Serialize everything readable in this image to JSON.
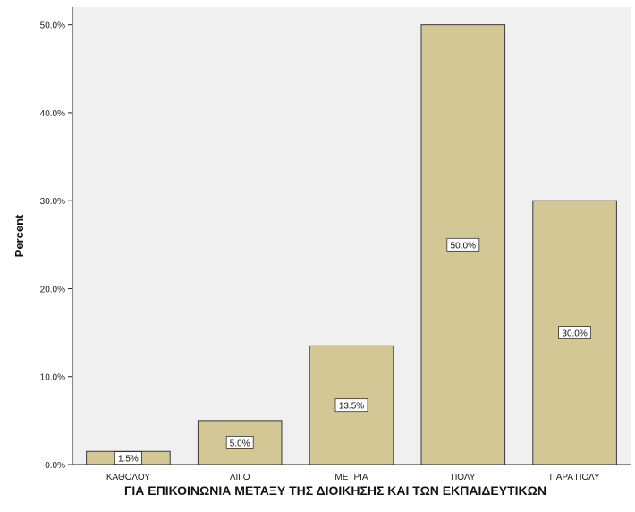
{
  "chart_data": {
    "type": "bar",
    "categories": [
      "ΚΑΘΟΛΟΥ",
      "ΛΙΓΟ",
      "ΜΕΤΡΙΑ",
      "ΠΟΛΥ",
      "ΠΑΡΑ ΠΟΛΥ"
    ],
    "values": [
      1.5,
      5.0,
      13.5,
      50.0,
      30.0
    ],
    "data_labels": [
      "1.5%",
      "5.0%",
      "13.5%",
      "50.0%",
      "30.0%"
    ],
    "xlabel": "ΓΙΑ ΕΠΙΚΟΙΝΩΝΙΑ ΜΕΤΑΞΥ ΤΗΣ ΔΙΟΙΚΗΣΗΣ ΚΑΙ ΤΩΝ ΕΚΠΑΙΔΕΥΤΙΚΩΝ",
    "ylabel": "Percent",
    "ylim": [
      0,
      50
    ],
    "yticks": [
      0,
      10,
      20,
      30,
      40,
      50
    ],
    "ytick_labels": [
      "0.0%",
      "10.0%",
      "20.0%",
      "30.0%",
      "40.0%",
      "50.0%"
    ],
    "grid": false,
    "legend": "none",
    "colors": {
      "plot_background": "#f0f0f0",
      "bar_fill": "#d3c795",
      "bar_stroke": "#3a3a3a",
      "axis": "#222222",
      "label_box_fill": "#ffffff"
    }
  }
}
